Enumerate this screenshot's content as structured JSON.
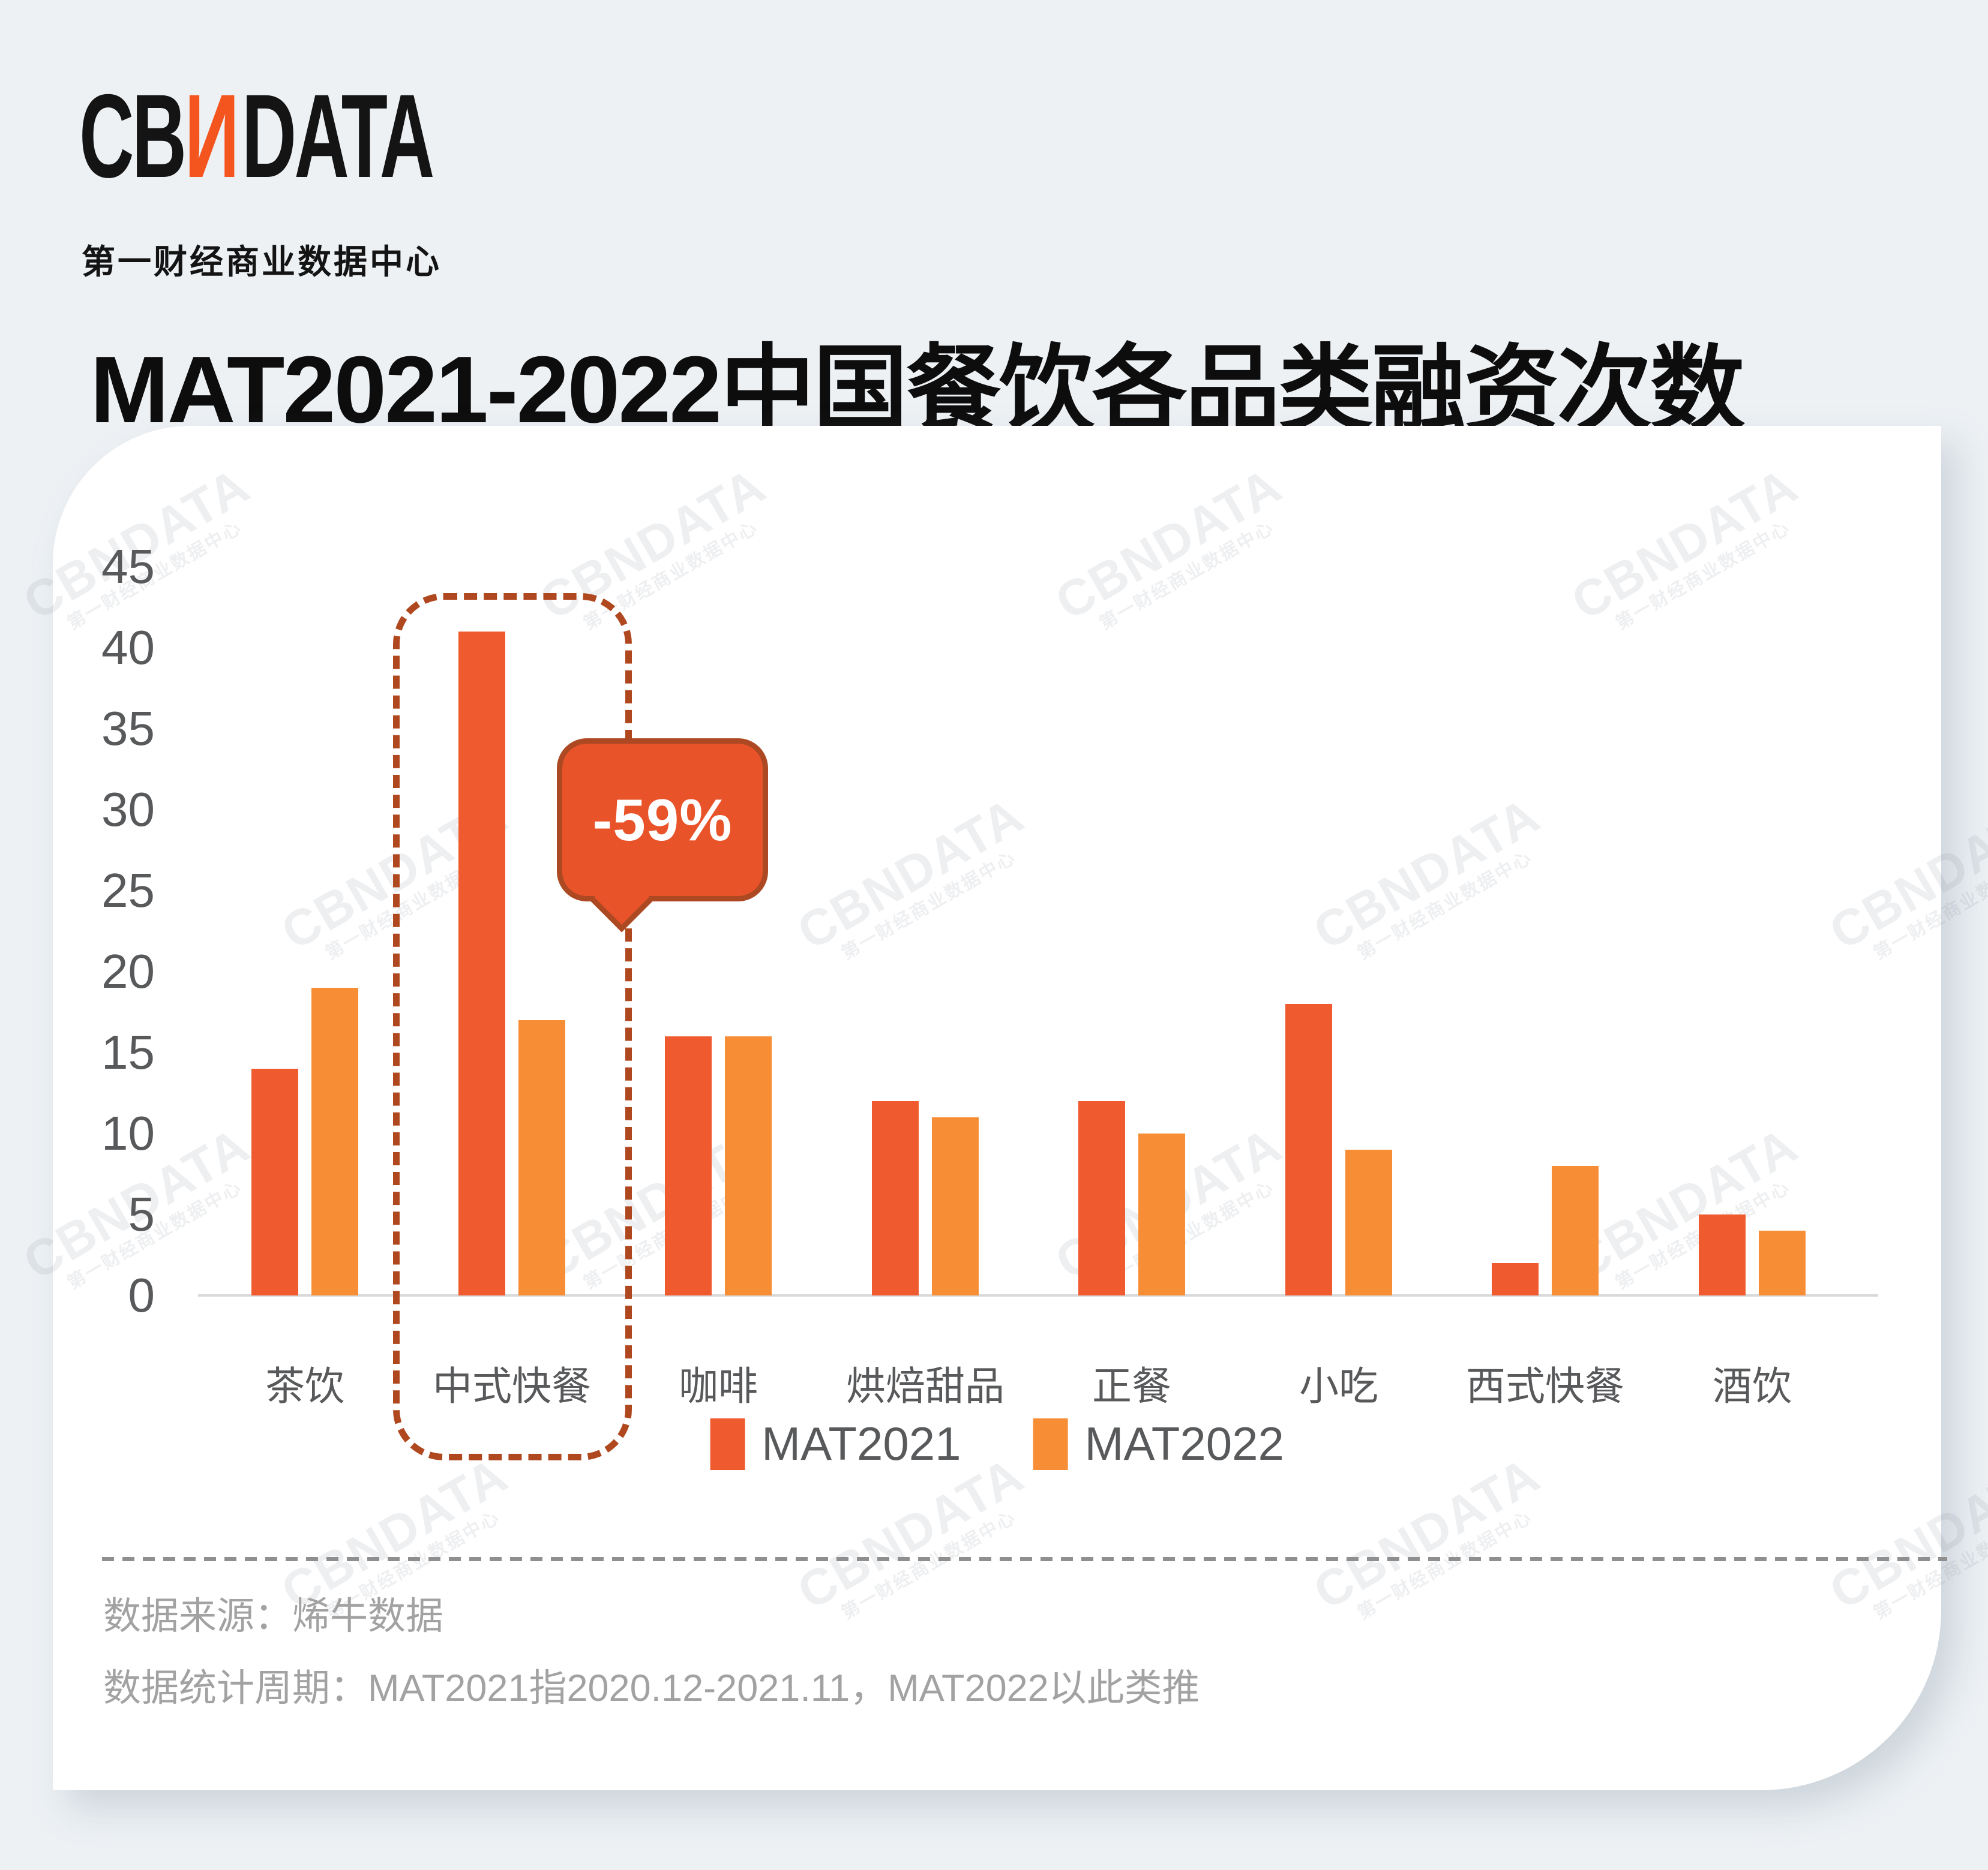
{
  "brand": {
    "logo_prefix": "CB",
    "logo_n": "N",
    "logo_suffix": "DATA",
    "logo_subtitle": "第一财经商业数据中心",
    "accent_color": "#F4541D"
  },
  "title": "MAT2021-2022中国餐饮各品类融资次数",
  "chart_data": {
    "type": "bar",
    "title": "MAT2021-2022中国餐饮各品类融资次数",
    "categories": [
      "茶饮",
      "中式快餐",
      "咖啡",
      "烘焙甜品",
      "正餐",
      "小吃",
      "西式快餐",
      "酒饮"
    ],
    "series": [
      {
        "name": "MAT2021",
        "color": "#EF5B2E",
        "values": [
          14,
          41,
          16,
          12,
          12,
          18,
          2,
          5
        ]
      },
      {
        "name": "MAT2022",
        "color": "#F78E35",
        "values": [
          19,
          17,
          16,
          11,
          10,
          9,
          8,
          4
        ]
      }
    ],
    "xlabel": "",
    "ylabel": "",
    "ylim": [
      0,
      45
    ],
    "yticks": [
      0,
      5,
      10,
      15,
      20,
      25,
      30,
      35,
      40,
      45
    ],
    "grid": false,
    "legend_position": "bottom",
    "annotation": {
      "target_category": "中式快餐",
      "label": "-59%",
      "style": "dashed-rounded-rect-with-speech-bubble",
      "highlight_color": "#B0481F",
      "bubble_fill": "#E95329"
    }
  },
  "highlight": {
    "label": "-59%"
  },
  "footer": {
    "source": "数据来源：烯牛数据",
    "period": "数据统计周期：MAT2021指2020.12-2021.11，MAT2022以此类推"
  },
  "watermark": {
    "line1": "CBNDATA",
    "line2": "第一财经商业数据中心"
  },
  "colors": {
    "page_background": "#EDF1F4",
    "card_background": "#FFFFFF",
    "axis_line": "#D9D9D9",
    "axis_text": "#58595B",
    "footer_text": "#A2A2A2",
    "title_text": "#0D0D0D",
    "series_mat2021": "#EF5B2E",
    "series_mat2022": "#F78E35",
    "highlight_border": "#B0481F",
    "bubble_fill": "#E95329"
  }
}
